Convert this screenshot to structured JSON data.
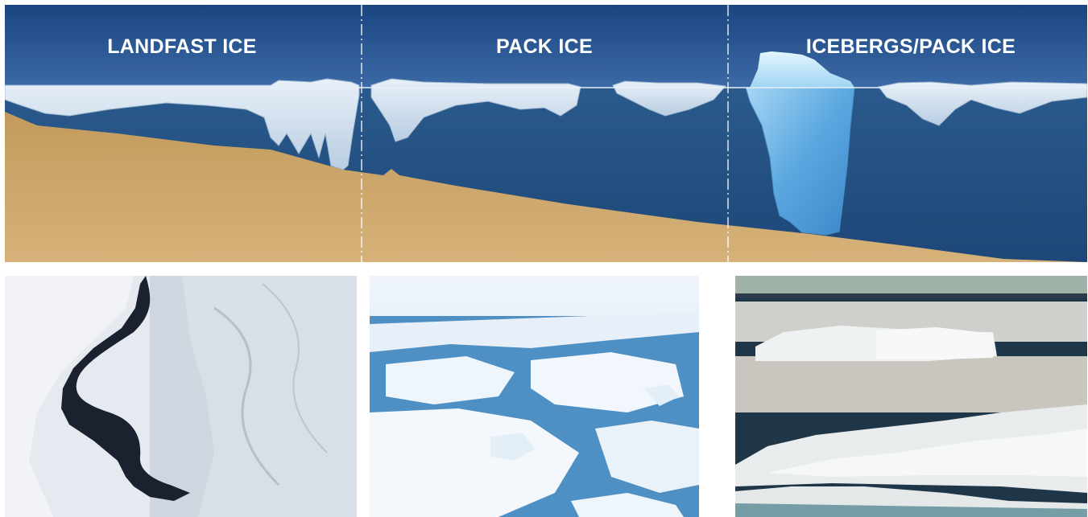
{
  "sections": [
    {
      "id": "landfast",
      "label": "LANDFAST ICE"
    },
    {
      "id": "pack",
      "label": "PACK ICE"
    },
    {
      "id": "icebergs",
      "label": "ICEBERGS/PACK ICE"
    }
  ],
  "colors": {
    "sky": "#1f4f8e",
    "water": "#224f83",
    "seafloor": "#c9a265",
    "ice": "#dde8f2",
    "iceberg": "#6fb6e6"
  }
}
